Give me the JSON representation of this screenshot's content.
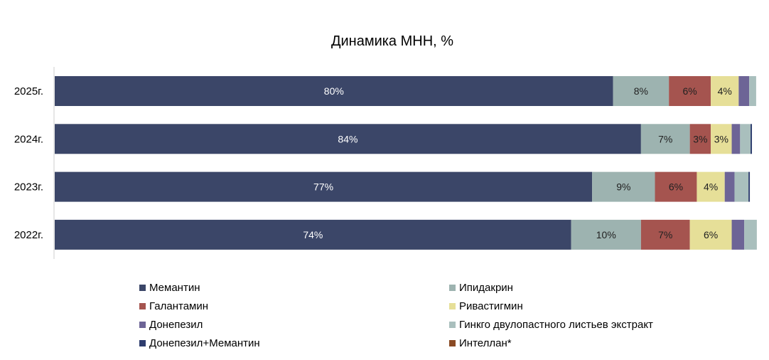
{
  "chart_data": {
    "type": "bar",
    "orientation": "horizontal",
    "stacked": true,
    "title": "Динамика МНН, %",
    "categories": [
      "2025г.",
      "2024г.",
      "2023г.",
      "2022г."
    ],
    "xlim": [
      0,
      100
    ],
    "grid": false,
    "legend_position": "bottom",
    "series": [
      {
        "name": "Мемантин",
        "color": "#3b4668",
        "values": [
          80,
          84,
          77,
          74
        ],
        "labels": [
          "80%",
          "84%",
          "77%",
          "74%"
        ]
      },
      {
        "name": "Ипидакрин",
        "color": "#9db3b0",
        "values": [
          8,
          7,
          9,
          10
        ],
        "labels": [
          "8%",
          "7%",
          "9%",
          "10%"
        ]
      },
      {
        "name": "Галантамин",
        "color": "#a5544f",
        "values": [
          6,
          3,
          6,
          7
        ],
        "labels": [
          "6%",
          "3%",
          "6%",
          "7%"
        ]
      },
      {
        "name": "Ривастигмин",
        "color": "#e6df98",
        "values": [
          4,
          3,
          4,
          6
        ],
        "labels": [
          "4%",
          "3%",
          "4%",
          "6%"
        ]
      },
      {
        "name": "Донепезил",
        "color": "#6d6496",
        "values": [
          1.5,
          1.2,
          1.4,
          1.8
        ],
        "labels": [
          "",
          "",
          "",
          ""
        ]
      },
      {
        "name": "Гинкго двулопастного листьев экстракт",
        "color": "#a9bfbd",
        "values": [
          1.0,
          1.5,
          2.0,
          1.8
        ],
        "labels": [
          "",
          "",
          "",
          ""
        ]
      },
      {
        "name": "Донепезил+Мемантин",
        "color": "#2e3d6e",
        "values": [
          0,
          0.2,
          0.2,
          0
        ],
        "labels": [
          "",
          "",
          "",
          ""
        ]
      },
      {
        "name": "Интеллан*",
        "color": "#8a4a24",
        "values": [
          0,
          0,
          0,
          0
        ],
        "labels": [
          "",
          "",
          "",
          ""
        ]
      }
    ]
  }
}
